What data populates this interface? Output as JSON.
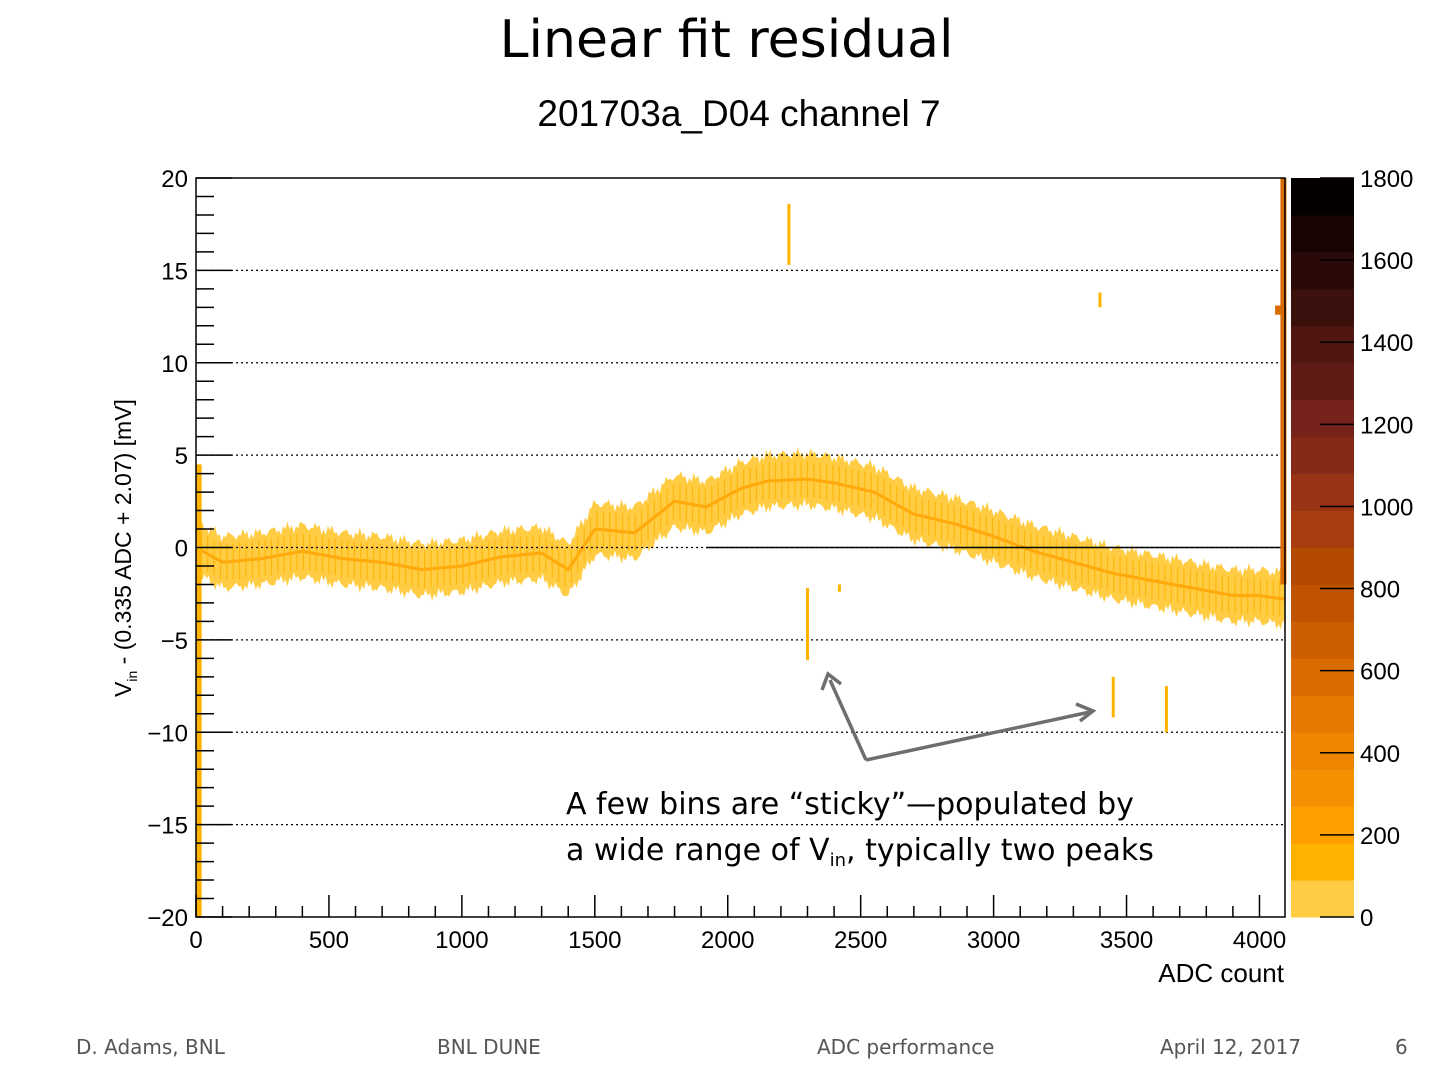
{
  "slide": {
    "title": "Linear fit residual",
    "annotation": {
      "line1": "A few bins are “sticky”—populated by",
      "line2_pre": "a wide range of V",
      "line2_sub": "in",
      "line2_post": ", typically two peaks"
    },
    "footer": {
      "author": "D. Adams, BNL",
      "group": "BNL DUNE",
      "topic": "ADC performance",
      "date": "April 12, 2017",
      "page": "6"
    }
  },
  "chart_data": {
    "type": "heatmap",
    "title": "201703a_D04 channel 7",
    "xlabel": "ADC count",
    "ylabel_main": "V",
    "ylabel_sub": "in",
    "ylabel_rest": " - (0.335 ADC + 2.07) [mV]",
    "xlim": [
      0,
      4096
    ],
    "ylim": [
      -20,
      20
    ],
    "x_ticks": [
      "0",
      "500",
      "1000",
      "1500",
      "2000",
      "2500",
      "3000",
      "3500",
      "4000"
    ],
    "x_tick_values": [
      0,
      500,
      1000,
      1500,
      2000,
      2500,
      3000,
      3500,
      4000
    ],
    "y_ticks": [
      "20",
      "15",
      "10",
      "5",
      "0",
      "−5",
      "−10",
      "−15",
      "−20"
    ],
    "y_tick_values": [
      20,
      15,
      10,
      5,
      0,
      -5,
      -10,
      -15,
      -20
    ],
    "grid": "horizontal dotted at major y ticks",
    "reference_line_y": 0,
    "colorbar": {
      "range": [
        0,
        1800
      ],
      "ticks": [
        "1800",
        "1600",
        "1400",
        "1200",
        "1000",
        "800",
        "600",
        "400",
        "200",
        "0"
      ],
      "tick_values": [
        1800,
        1600,
        1400,
        1200,
        1000,
        800,
        600,
        400,
        200,
        0
      ],
      "colors": [
        "#ffcc44",
        "#ffb300",
        "#ff9e00",
        "#f59000",
        "#ee8400",
        "#e47800",
        "#d96b00",
        "#cc5f00",
        "#c05300",
        "#b44a00",
        "#a83e10",
        "#993316",
        "#862a18",
        "#74221a",
        "#611b17",
        "#4f1612",
        "#3b100d",
        "#290a08",
        "#180503",
        "#050000"
      ]
    },
    "residual_band_centerline": {
      "x": [
        0,
        100,
        250,
        400,
        550,
        700,
        850,
        1000,
        1150,
        1300,
        1400,
        1500,
        1650,
        1800,
        1920,
        2050,
        2150,
        2300,
        2400,
        2550,
        2700,
        2850,
        3000,
        3150,
        3300,
        3450,
        3600,
        3750,
        3900,
        4000,
        4096
      ],
      "y": [
        0,
        -0.8,
        -0.6,
        -0.2,
        -0.6,
        -0.8,
        -1.2,
        -1.0,
        -0.5,
        -0.3,
        -1.2,
        1.0,
        0.8,
        2.5,
        2.2,
        3.2,
        3.6,
        3.7,
        3.5,
        3.0,
        1.8,
        1.3,
        0.6,
        -0.2,
        -0.8,
        -1.4,
        -1.8,
        -2.2,
        -2.6,
        -2.6,
        -2.8
      ]
    },
    "residual_band_halfwidth": 1.4,
    "sticky_bins": [
      {
        "adc": 2230,
        "y_low": 15.3,
        "y_high": 18.6
      },
      {
        "adc": 2300,
        "y_low": -6.1,
        "y_high": -2.2
      },
      {
        "adc": 2420,
        "y_low": -2.4,
        "y_high": -2.0
      },
      {
        "adc": 3400,
        "y_low": 13.0,
        "y_high": 13.8
      },
      {
        "adc": 3450,
        "y_low": -9.2,
        "y_high": -7.0
      },
      {
        "adc": 3650,
        "y_low": -10.0,
        "y_high": -7.5
      },
      {
        "adc": 4070,
        "y_low": 12.6,
        "y_high": 13.1
      },
      {
        "adc": 10,
        "y_low": -20,
        "y_high": 4.5
      },
      {
        "adc": 4090,
        "y_low": -2,
        "y_high": 20
      }
    ]
  }
}
